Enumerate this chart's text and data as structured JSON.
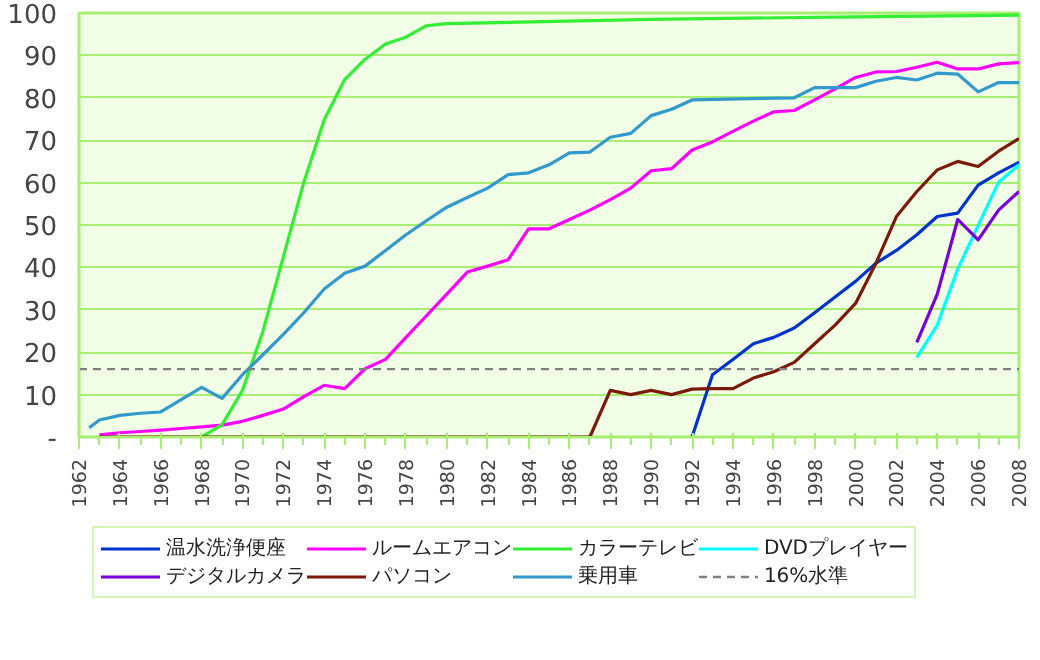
{
  "chart_data": {
    "type": "line",
    "xlim": [
      1962,
      2008
    ],
    "xticks": [
      1962,
      1964,
      1966,
      1968,
      1970,
      1972,
      1974,
      1976,
      1978,
      1980,
      1982,
      1984,
      1986,
      1988,
      1990,
      1992,
      1994,
      1996,
      1998,
      2000,
      2002,
      2004,
      2006,
      2008
    ],
    "ylim": [
      0,
      100
    ],
    "yticks": [
      {
        "value": 0,
        "label": "-"
      },
      10,
      20,
      30,
      40,
      50,
      60,
      70,
      80,
      90,
      100
    ],
    "grid": "y",
    "legend": "bottom",
    "marker": "none",
    "line_style": "solid",
    "series": [
      {
        "name": "温水洗浄便座",
        "color": "#0033cc",
        "x": [
          1992,
          1993,
          1994,
          1995,
          1996,
          1997,
          1998,
          1999,
          2000,
          2001,
          2002,
          2003,
          2004,
          2005,
          2006,
          2007,
          2008
        ],
        "values": [
          0,
          14.7,
          18.3,
          22,
          23.5,
          25.7,
          29.3,
          33,
          36.7,
          41,
          44,
          47.7,
          52,
          52.8,
          59.4,
          62.3,
          64.8
        ]
      },
      {
        "name": "ルームエアコン",
        "color": "#ff00ff",
        "x": [
          1963,
          1964,
          1965,
          1966,
          1967,
          1968,
          1969,
          1970,
          1971,
          1972,
          1973,
          1974,
          1975,
          1976,
          1977,
          1978,
          1979,
          1980,
          1981,
          1982,
          1983,
          1984,
          1985,
          1986,
          1987,
          1988,
          1989,
          1990,
          1991,
          1992,
          1993,
          1994,
          1995,
          1996,
          1997,
          1998,
          1999,
          2000,
          2001,
          2002,
          2003,
          2004,
          2005,
          2006,
          2007,
          2008
        ],
        "values": [
          0.5,
          1,
          1.3,
          1.6,
          2,
          2.4,
          2.8,
          3.7,
          5.1,
          6.6,
          9.5,
          12.2,
          11.4,
          16.1,
          18.3,
          23.5,
          28.6,
          33.7,
          38.9,
          40.3,
          41.8,
          49.1,
          49.1,
          51.3,
          53.5,
          56,
          58.7,
          62.8,
          63.3,
          67.7,
          69.6,
          72.1,
          74.5,
          76.7,
          77,
          79.5,
          82.1,
          84.8,
          86.1,
          86.2,
          87.2,
          88.4,
          86.8,
          86.8,
          88,
          88.3
        ]
      },
      {
        "name": "カラーテレビ",
        "color": "#33ee33",
        "x": [
          1968,
          1969,
          1970,
          1971,
          1972,
          1973,
          1974,
          1975,
          1976,
          1977,
          1978,
          1979,
          1980,
          1990,
          2000,
          2008
        ],
        "values": [
          0,
          2.9,
          11,
          24.9,
          42.5,
          60,
          74.8,
          84.3,
          89.1,
          92.7,
          94.3,
          97,
          97.5,
          98.5,
          99.1,
          99.5
        ]
      },
      {
        "name": "DVDプレイヤー",
        "color": "#00ffff",
        "x": [
          2003,
          2004,
          2005,
          2006,
          2007,
          2008
        ],
        "values": [
          18.8,
          26.4,
          39.6,
          49.9,
          60.1,
          64.2
        ]
      },
      {
        "name": "デジタルカメラ",
        "color": "#7700dd",
        "x": [
          2003,
          2004,
          2005,
          2006,
          2007,
          2008
        ],
        "values": [
          22.3,
          33.7,
          51.3,
          46.5,
          53.5,
          57.9
        ]
      },
      {
        "name": "パソコン",
        "color": "#7b1a0a",
        "x": [
          1963,
          1987,
          1988,
          1989,
          1990,
          1991,
          1992,
          1993,
          1994,
          1995,
          1996,
          1997,
          1998,
          1999,
          2000,
          2001,
          2002,
          2003,
          2004,
          2005,
          2006,
          2007,
          2008
        ],
        "values": [
          0,
          0,
          11,
          10,
          11,
          10,
          11.3,
          11.4,
          11.4,
          13.9,
          15.4,
          17.6,
          22,
          26.4,
          31.5,
          41,
          52,
          57.9,
          63,
          65,
          63.8,
          67.4,
          70.4
        ]
      },
      {
        "name": "乗用車",
        "color": "#3399cc",
        "x": [
          1962.5,
          1963,
          1964,
          1965,
          1966,
          1967,
          1968,
          1969,
          1970,
          1971,
          1972,
          1973,
          1974,
          1975,
          1976,
          1977,
          1978,
          1979,
          1980,
          1981,
          1982,
          1983,
          1984,
          1985,
          1986,
          1987,
          1988,
          1989,
          1990,
          1991,
          1992,
          1997,
          1998,
          1999,
          2000,
          2001,
          2002,
          2003,
          2004,
          2005,
          2006,
          2007,
          2008
        ],
        "values": [
          2.2,
          4,
          5.1,
          5.6,
          5.9,
          8.8,
          11.7,
          9.1,
          14.7,
          19.4,
          24.2,
          29.3,
          34.9,
          38.6,
          40.3,
          44,
          47.7,
          51,
          54.2,
          56.5,
          58.7,
          61.9,
          62.3,
          64.2,
          67,
          67.2,
          70.7,
          71.6,
          75.8,
          77.3,
          79.5,
          80,
          82.4,
          82.4,
          82.4,
          83.9,
          84.8,
          84.2,
          85.8,
          85.6,
          81.4,
          83.6,
          83.6
        ]
      }
    ],
    "ref_lines": [
      {
        "axis": "y",
        "value": 16,
        "label": "16%水準",
        "color": "#808080",
        "line_style": "dashed"
      }
    ]
  }
}
